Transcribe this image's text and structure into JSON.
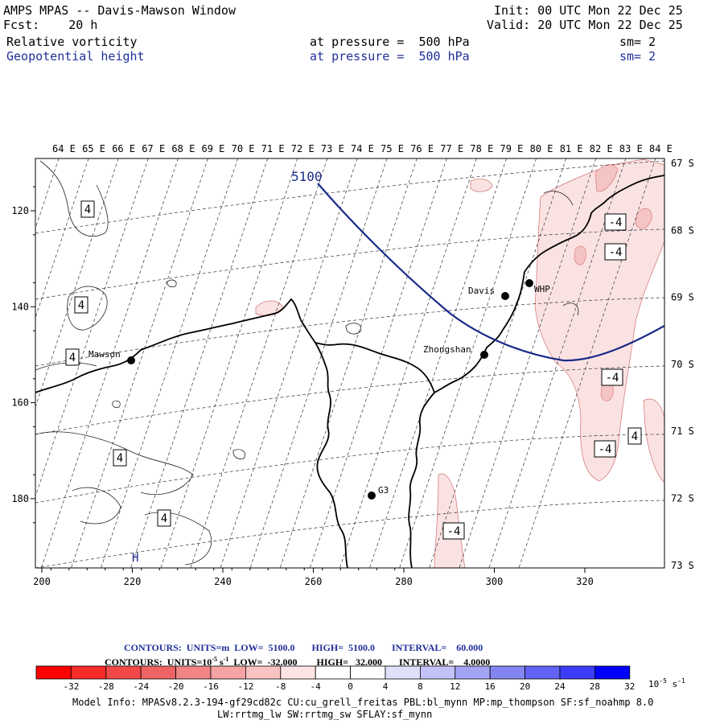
{
  "header": {
    "title": "AMPS MPAS -- Davis-Mawson Window",
    "forecast": "Fcst:    20 h",
    "init": "Init: 00 UTC Mon 22 Dec 25",
    "valid": "Valid: 20 UTC Mon 22 Dec 25",
    "field1_name": "Relative vorticity",
    "field1_level": "at pressure =  500 hPa",
    "field1_sm": "sm= 2",
    "field2_name": "Geopotential height",
    "field2_level": "at pressure =  500 hPa",
    "field2_sm": "sm= 2"
  },
  "map": {
    "lon_labels": [
      "64 E",
      "65 E",
      "66 E",
      "67 E",
      "68 E",
      "69 E",
      "70 E",
      "71 E",
      "72 E",
      "73 E",
      "74 E",
      "75 E",
      "76 E",
      "77 E",
      "78 E",
      "79 E",
      "80 E",
      "81 E",
      "82 E",
      "83 E",
      "84 E"
    ],
    "lat_labels": [
      "67 S",
      "68 S",
      "69 S",
      "70 S",
      "71 S",
      "72 S",
      "73 S"
    ],
    "x_ticks": [
      "200",
      "220",
      "240",
      "260",
      "280",
      "300",
      "320"
    ],
    "y_ticks": [
      "120",
      "140",
      "160",
      "180"
    ],
    "stations": [
      {
        "name": "Davis"
      },
      {
        "name": "WHP"
      },
      {
        "name": "Mawson"
      },
      {
        "name": "Zhongshan"
      },
      {
        "name": "G3"
      }
    ],
    "contour_labels": {
      "height": "5100",
      "vort_pos": "4",
      "vort_neg": "-4",
      "high_marker": "H"
    },
    "colors": {
      "height_contour": "#1a2a8a",
      "coast": "#000000",
      "neg_fill": "#fbe2e2",
      "neg_fill_strong": "#f5c4c4"
    }
  },
  "info": {
    "contours1": "CONTOURS:  UNITS=m  LOW=  5100.0       HIGH=  5100.0       INTERVAL=    60.000",
    "contours2": "CONTOURS:  UNITS=10",
    "contours2_sup": "-5",
    "contours2_rest": " s",
    "contours2_sup2": "-1",
    "contours2_tail": "  LOW=  -32.000        HIGH=   32.000       INTERVAL=    4.0000",
    "model1": "Model Info: MPASv8.2.3-194-gf29cd82c CU:cu_grell_freitas PBL:bl_mynn MP:mp_thompson SF:sf_noahmp 8.0",
    "model2": "LW:rrtmg_lw SW:rrtmg_sw SFLAY:sf_mynn"
  },
  "colorbar": {
    "colors": [
      "#ff0000",
      "#f82b2b",
      "#f24848",
      "#ee6464",
      "#f18585",
      "#f5a3a3",
      "#f9c3c3",
      "#fde3e3",
      "#ffffff",
      "#ffffff",
      "#e0e0fb",
      "#c2c2f7",
      "#a3a3f4",
      "#8585f2",
      "#6262f4",
      "#3c3cf8",
      "#0000ff"
    ],
    "labels": [
      "-32",
      "-28",
      "-24",
      "-20",
      "-16",
      "-12",
      "-8",
      "-4",
      "0",
      "4",
      "8",
      "12",
      "16",
      "20",
      "24",
      "28",
      "32"
    ],
    "unit": "10",
    "unit_sup": "-5",
    "unit_tail": " s",
    "unit_sup2": "-1"
  }
}
